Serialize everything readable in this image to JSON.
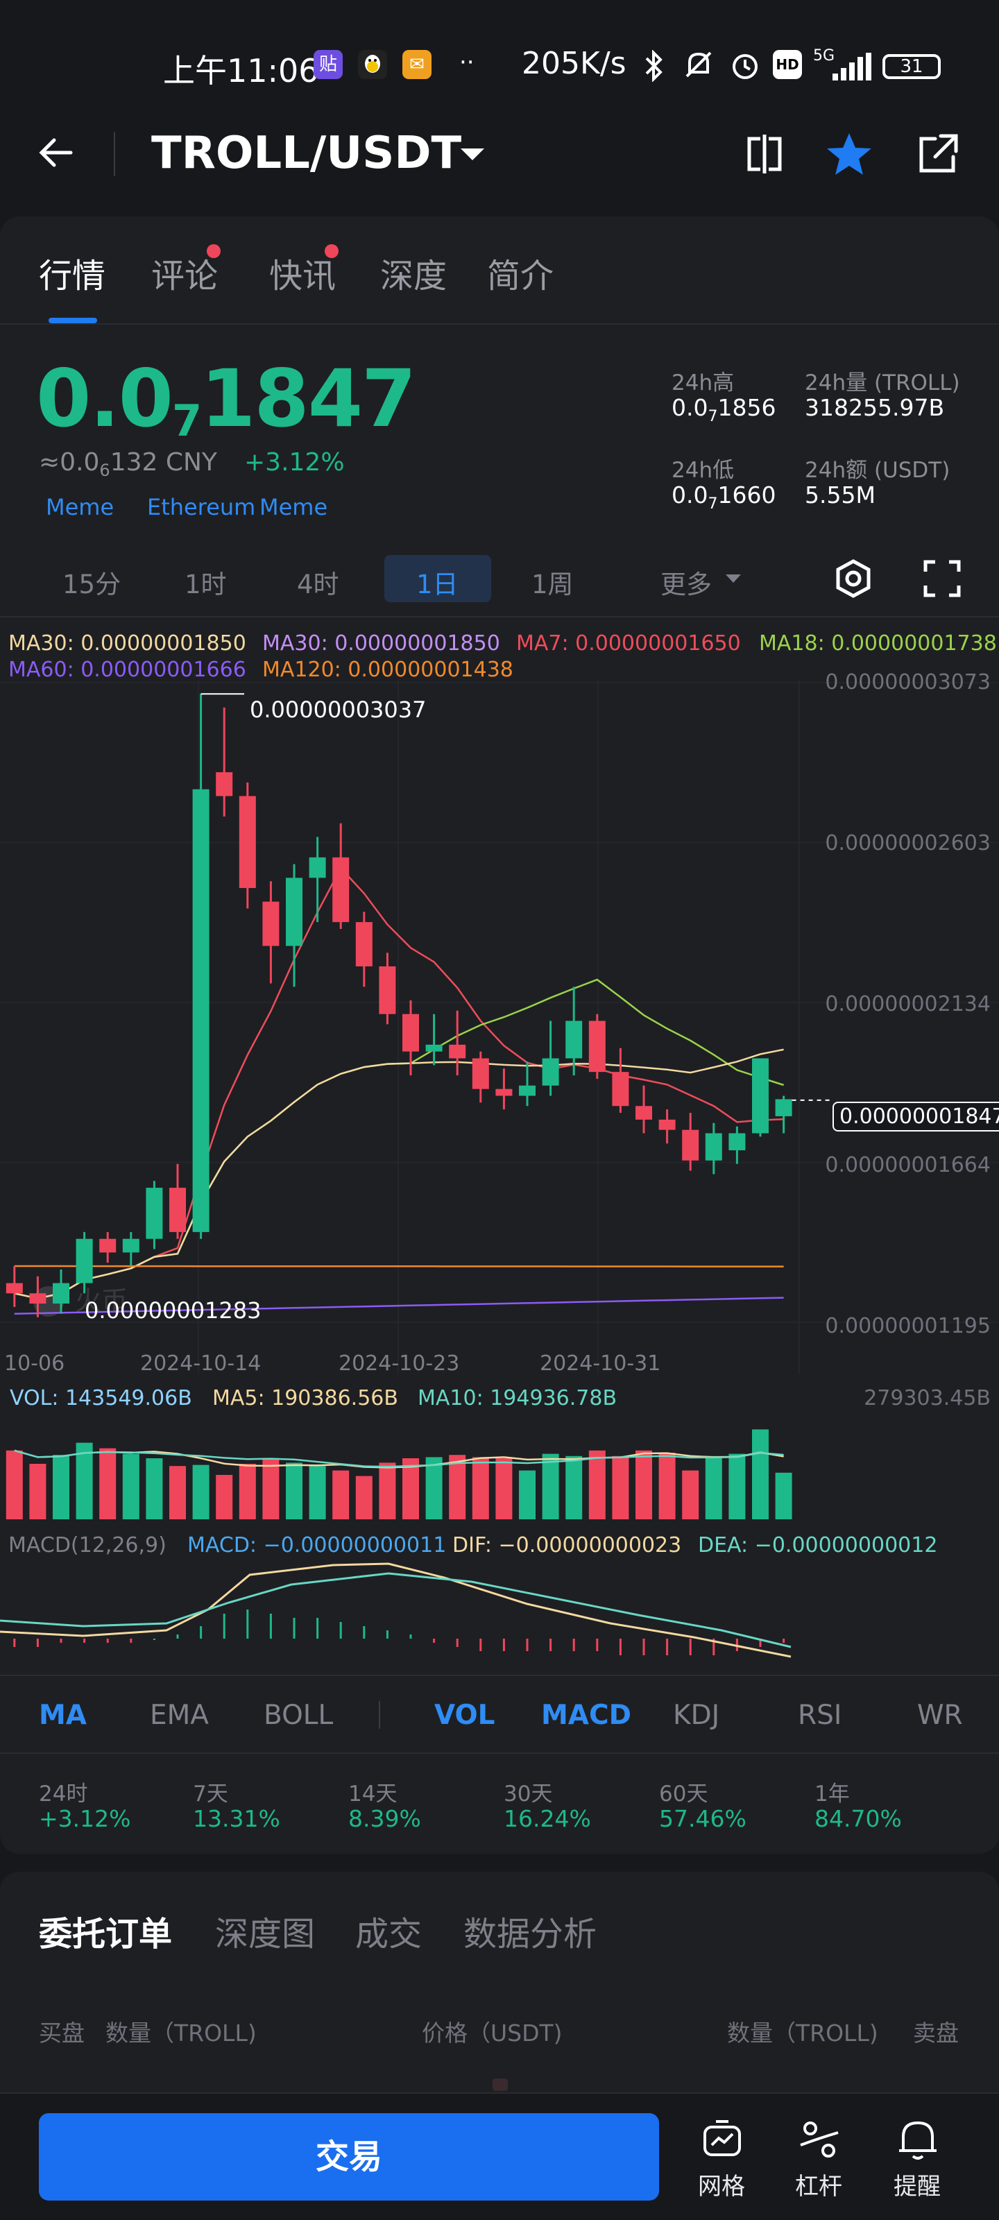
{
  "status_bar": {
    "time": "上午11:06",
    "app_icons": [
      "贴",
      "企鹅",
      "✉"
    ],
    "dots": "··",
    "net_speed": "205K/s",
    "signal_label": "5G",
    "battery": "31"
  },
  "header": {
    "pair": "TROLL/USDT"
  },
  "tabs": [
    {
      "label": "行情",
      "active": true,
      "dot": false
    },
    {
      "label": "评论",
      "active": false,
      "dot": true
    },
    {
      "label": "快讯",
      "active": false,
      "dot": true
    },
    {
      "label": "深度",
      "active": false,
      "dot": false
    },
    {
      "label": "简介",
      "active": false,
      "dot": false
    }
  ],
  "ticker": {
    "price_prefix": "0.0",
    "price_sub": "7",
    "price_rest": "1847",
    "cny_prefix": "≈0.0",
    "cny_sub": "6",
    "cny_rest": "132 CNY",
    "change": "+3.12%",
    "tags": [
      "Meme",
      "Ethereum",
      "Meme"
    ]
  },
  "stats": {
    "high_label": "24h高",
    "high_prefix": "0.0",
    "high_sub": "7",
    "high_rest": "1856",
    "vol_label": "24h量 (TROLL)",
    "vol_value": "318255.97B",
    "low_label": "24h低",
    "low_prefix": "0.0",
    "low_sub": "7",
    "low_rest": "1660",
    "amount_label": "24h额 (USDT)",
    "amount_value": "5.55M"
  },
  "periods": [
    {
      "label": "15分",
      "active": false
    },
    {
      "label": "1时",
      "active": false
    },
    {
      "label": "4时",
      "active": false
    },
    {
      "label": "1日",
      "active": true
    },
    {
      "label": "1周",
      "active": false
    },
    {
      "label": "更多",
      "active": false
    }
  ],
  "ma_legend": [
    {
      "text": "MA30: 0.00000001850",
      "color": "#f3d9a0"
    },
    {
      "text": "MA30: 0.00000001850",
      "color": "#c48ff5"
    },
    {
      "text": "MA7: 0.00000001650",
      "color": "#ef4d5a"
    },
    {
      "text": "MA18: 0.00000001738",
      "color": "#9bd34a"
    },
    {
      "text": "MA60: 0.00000001666",
      "color": "#8b5cf6"
    },
    {
      "text": "MA120: 0.00000001438",
      "color": "#f08a2c"
    }
  ],
  "colors": {
    "up": "#1db98a",
    "down": "#f0465b",
    "accent": "#1f7cf2"
  },
  "chart_data": {
    "type": "candlestick",
    "x_tick_labels": [
      "10-06",
      "2024-10-14",
      "2024-10-23",
      "2024-10-31"
    ],
    "y_tick_labels": [
      "0.00000003073",
      "0.00000002603",
      "0.00000002134",
      "0.00000001664",
      "0.00000001195"
    ],
    "ylim": [
      1.195e-08,
      3.073e-08
    ],
    "max_label": "0.00000003037",
    "min_label": "0.00000001283",
    "last_price_label": "0.00000001847",
    "candles": [
      {
        "o": 1.31e-08,
        "h": 1.36e-08,
        "l": 1.24e-08,
        "c": 1.28e-08
      },
      {
        "o": 1.28e-08,
        "h": 1.33e-08,
        "l": 1.21e-08,
        "c": 1.25e-08
      },
      {
        "o": 1.25e-08,
        "h": 1.35e-08,
        "l": 1.22e-08,
        "c": 1.31e-08
      },
      {
        "o": 1.31e-08,
        "h": 1.46e-08,
        "l": 1.28e-08,
        "c": 1.44e-08
      },
      {
        "o": 1.44e-08,
        "h": 1.46e-08,
        "l": 1.37e-08,
        "c": 1.4e-08
      },
      {
        "o": 1.4e-08,
        "h": 1.46e-08,
        "l": 1.36e-08,
        "c": 1.44e-08
      },
      {
        "o": 1.44e-08,
        "h": 1.61e-08,
        "l": 1.41e-08,
        "c": 1.59e-08
      },
      {
        "o": 1.59e-08,
        "h": 1.66e-08,
        "l": 1.44e-08,
        "c": 1.46e-08
      },
      {
        "o": 1.46e-08,
        "h": 3.04e-08,
        "l": 1.44e-08,
        "c": 2.76e-08
      },
      {
        "o": 2.81e-08,
        "h": 3e-08,
        "l": 2.68e-08,
        "c": 2.74e-08
      },
      {
        "o": 2.74e-08,
        "h": 2.78e-08,
        "l": 2.41e-08,
        "c": 2.47e-08
      },
      {
        "o": 2.43e-08,
        "h": 2.49e-08,
        "l": 2.19e-08,
        "c": 2.3e-08
      },
      {
        "o": 2.3e-08,
        "h": 2.54e-08,
        "l": 2.18e-08,
        "c": 2.5e-08
      },
      {
        "o": 2.5e-08,
        "h": 2.62e-08,
        "l": 2.37e-08,
        "c": 2.56e-08
      },
      {
        "o": 2.56e-08,
        "h": 2.66e-08,
        "l": 2.35e-08,
        "c": 2.37e-08
      },
      {
        "o": 2.37e-08,
        "h": 2.4e-08,
        "l": 2.18e-08,
        "c": 2.24e-08
      },
      {
        "o": 2.24e-08,
        "h": 2.28e-08,
        "l": 2.07e-08,
        "c": 2.1e-08
      },
      {
        "o": 2.1e-08,
        "h": 2.14e-08,
        "l": 1.92e-08,
        "c": 1.99e-08
      },
      {
        "o": 1.99e-08,
        "h": 2.1e-08,
        "l": 1.95e-08,
        "c": 2.01e-08
      },
      {
        "o": 2.01e-08,
        "h": 2.11e-08,
        "l": 1.92e-08,
        "c": 1.97e-08
      },
      {
        "o": 1.97e-08,
        "h": 1.99e-08,
        "l": 1.84e-08,
        "c": 1.88e-08
      },
      {
        "o": 1.88e-08,
        "h": 1.94e-08,
        "l": 1.82e-08,
        "c": 1.86e-08
      },
      {
        "o": 1.86e-08,
        "h": 1.96e-08,
        "l": 1.83e-08,
        "c": 1.89e-08
      },
      {
        "o": 1.89e-08,
        "h": 2.08e-08,
        "l": 1.86e-08,
        "c": 1.97e-08
      },
      {
        "o": 1.97e-08,
        "h": 2.18e-08,
        "l": 1.92e-08,
        "c": 2.08e-08
      },
      {
        "o": 2.08e-08,
        "h": 2.1e-08,
        "l": 1.91e-08,
        "c": 1.93e-08
      },
      {
        "o": 1.93e-08,
        "h": 2e-08,
        "l": 1.81e-08,
        "c": 1.83e-08
      },
      {
        "o": 1.83e-08,
        "h": 1.89e-08,
        "l": 1.75e-08,
        "c": 1.79e-08
      },
      {
        "o": 1.79e-08,
        "h": 1.82e-08,
        "l": 1.72e-08,
        "c": 1.76e-08
      },
      {
        "o": 1.76e-08,
        "h": 1.81e-08,
        "l": 1.64e-08,
        "c": 1.67e-08
      },
      {
        "o": 1.67e-08,
        "h": 1.78e-08,
        "l": 1.63e-08,
        "c": 1.75e-08
      },
      {
        "o": 1.7e-08,
        "h": 1.77e-08,
        "l": 1.66e-08,
        "c": 1.75e-08
      },
      {
        "o": 1.75e-08,
        "h": 1.97e-08,
        "l": 1.74e-08,
        "c": 1.97e-08
      },
      {
        "o": 1.8e-08,
        "h": 1.86e-08,
        "l": 1.75e-08,
        "c": 1.85e-08
      }
    ],
    "volume_legend": [
      "VOL: 143549.06B",
      "MA5: 190386.56B",
      "MA10: 194936.78B"
    ],
    "volume_max_label": "279303.45B",
    "volumes": [
      0.62,
      0.5,
      0.58,
      0.69,
      0.64,
      0.59,
      0.55,
      0.48,
      0.49,
      0.4,
      0.5,
      0.54,
      0.51,
      0.48,
      0.44,
      0.39,
      0.51,
      0.55,
      0.56,
      0.58,
      0.56,
      0.55,
      0.44,
      0.59,
      0.57,
      0.62,
      0.57,
      0.62,
      0.6,
      0.44,
      0.57,
      0.59,
      0.81,
      0.42
    ],
    "macd_legend": [
      "MACD(12,26,9)",
      "MACD: −0.00000000011",
      "DIF: −0.00000000023",
      "DEA: −0.00000000012"
    ]
  },
  "indicators": [
    {
      "label": "MA",
      "active": true
    },
    {
      "label": "EMA",
      "active": false
    },
    {
      "label": "BOLL",
      "active": false
    },
    {
      "label": "VOL",
      "active": true
    },
    {
      "label": "MACD",
      "active": true
    },
    {
      "label": "KDJ",
      "active": false
    },
    {
      "label": "RSI",
      "active": false
    },
    {
      "label": "WR",
      "active": false
    }
  ],
  "returns": [
    {
      "period": "24时",
      "value": "+3.12%"
    },
    {
      "period": "7天",
      "value": "13.31%"
    },
    {
      "period": "14天",
      "value": "8.39%"
    },
    {
      "period": "30天",
      "value": "16.24%"
    },
    {
      "period": "60天",
      "value": "57.46%"
    },
    {
      "period": "1年",
      "value": "84.70%"
    }
  ],
  "order_tabs": [
    {
      "label": "委托订单",
      "active": true
    },
    {
      "label": "深度图",
      "active": false
    },
    {
      "label": "成交",
      "active": false
    },
    {
      "label": "数据分析",
      "active": false
    }
  ],
  "order_headers": {
    "bid": "买盘",
    "bid_qty": "数量（TROLL)",
    "price": "价格（USDT)",
    "ask_qty": "数量（TROLL)",
    "ask": "卖盘"
  },
  "bottom": {
    "trade_label": "交易",
    "grid_label": "网格",
    "leverage_label": "杠杆",
    "alert_label": "提醒"
  }
}
